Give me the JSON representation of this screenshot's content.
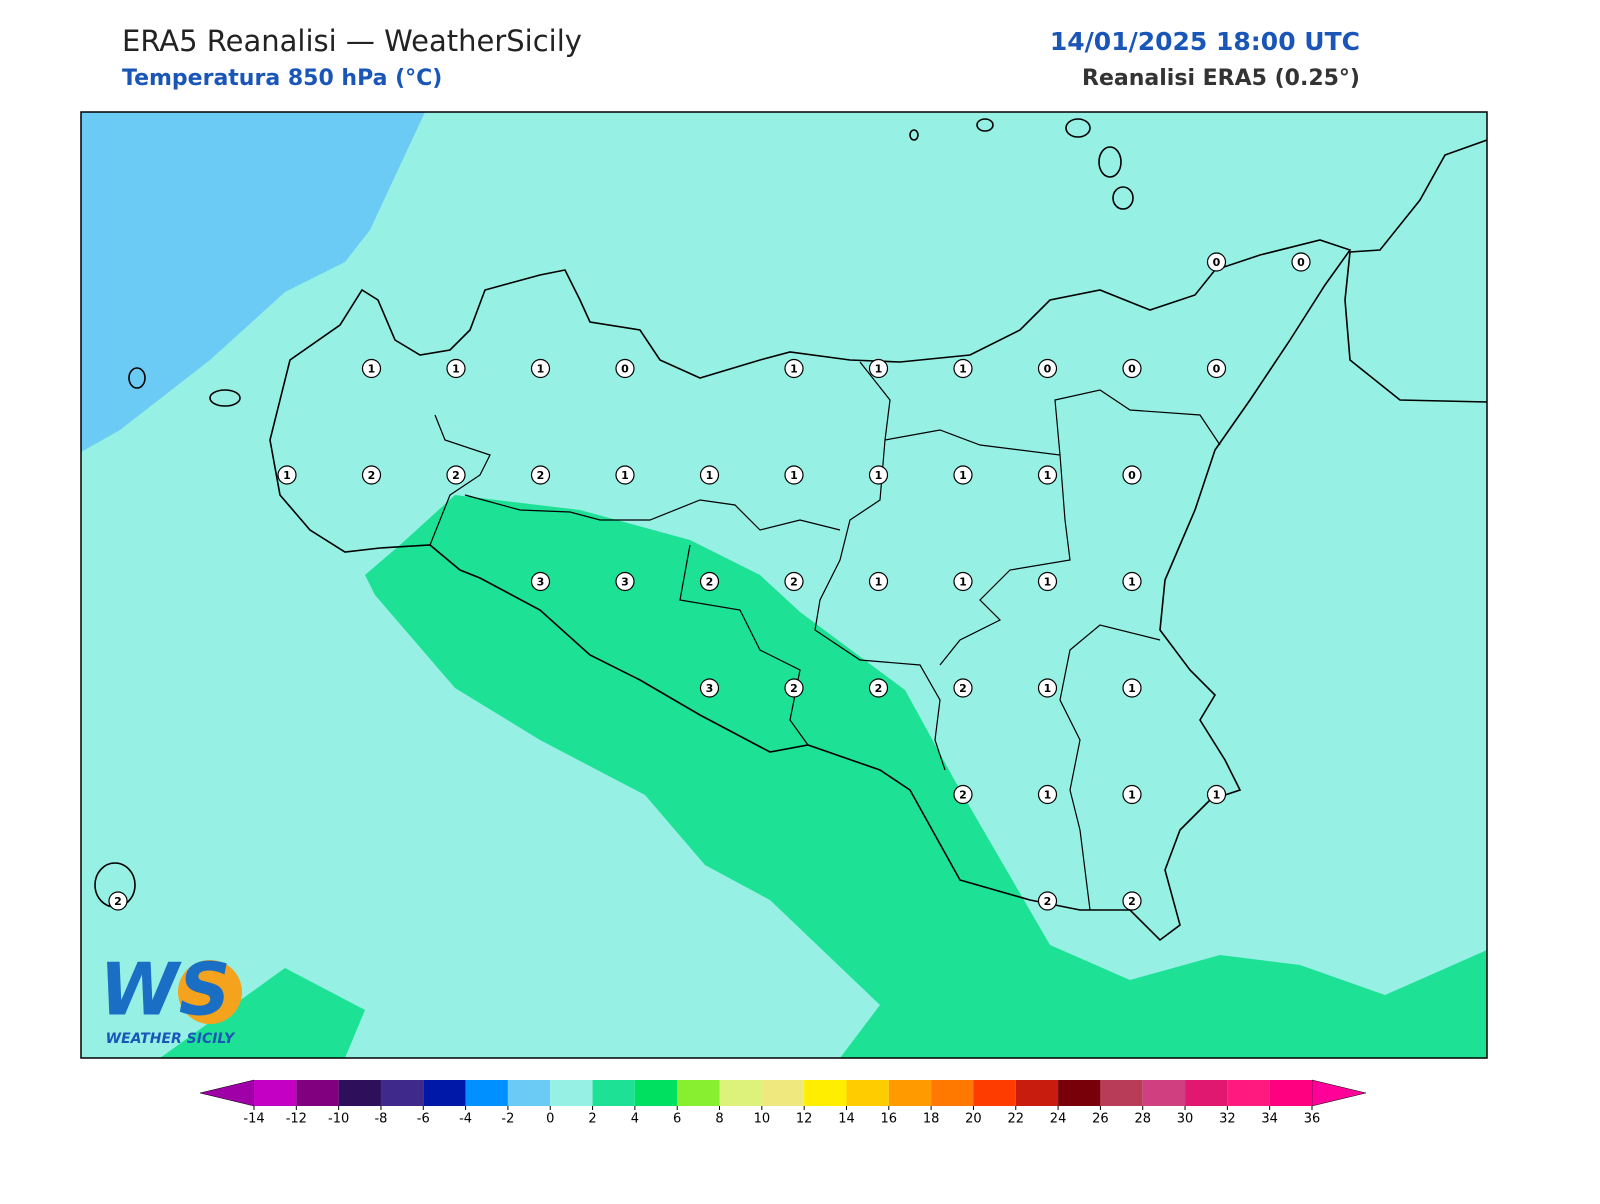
{
  "header": {
    "title": "ERA5 Reanalisi — WeatherSicily",
    "subtitle": "Temperatura 850 hPa (°C)",
    "datetime": "14/01/2025 18:00 UTC",
    "source": "Reanalisi ERA5 (0.25°)"
  },
  "map": {
    "background": "#96f0e4",
    "cold_fill": "#6ccbf5",
    "warm_fill": "#1de296",
    "stations": [
      0,
      0,
      1,
      1,
      1,
      0,
      1,
      1,
      1,
      0,
      0,
      0,
      1,
      2,
      2,
      2,
      1,
      1,
      1,
      1,
      1,
      1,
      0,
      3,
      3,
      2,
      2,
      1,
      1,
      1,
      1,
      3,
      2,
      2,
      2,
      1,
      1,
      2,
      1,
      1,
      1,
      2,
      2,
      2
    ]
  },
  "colorbar": {
    "ticks": [
      -14,
      -12,
      -10,
      -8,
      -6,
      -4,
      -2,
      0,
      2,
      4,
      6,
      8,
      10,
      12,
      14,
      16,
      18,
      20,
      22,
      24,
      26,
      28,
      30,
      32,
      34,
      36
    ],
    "under": "#a000a8",
    "over": "#ff0099",
    "colors": [
      "#c400c4",
      "#800080",
      "#2e0f5c",
      "#3f2a8c",
      "#0018a8",
      "#0090ff",
      "#6ccbf5",
      "#96f0e4",
      "#1de296",
      "#00e060",
      "#88ee30",
      "#dcf27a",
      "#eee87e",
      "#ffee00",
      "#ffcc00",
      "#ff9a00",
      "#ff7800",
      "#ff3c00",
      "#c81c0e",
      "#780008",
      "#b83c58",
      "#d04080",
      "#e01870",
      "#ff1a80",
      "#ff0080"
    ]
  },
  "logo": {
    "mark": "WS",
    "text": "WEATHER SICILY"
  }
}
